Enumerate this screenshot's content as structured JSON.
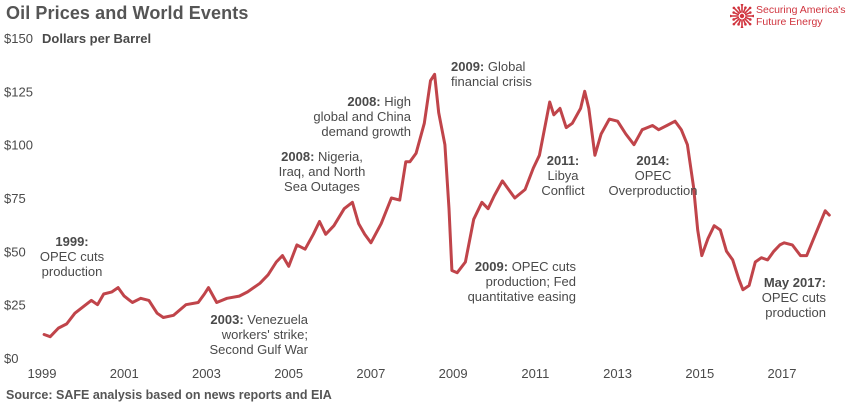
{
  "header": {
    "title": "Oil Prices and World Events",
    "logo_line1": "Securing America's",
    "logo_line2": "Future Energy"
  },
  "footer": {
    "source": "Source: SAFE analysis based on news reports and EIA"
  },
  "colors": {
    "line": "#c0444a",
    "logo": "#d0343e",
    "text": "#4a4a4a"
  },
  "chart_data": {
    "type": "line",
    "title": "Oil Prices and World Events",
    "ylabel": "Dollars per Barrel",
    "xlabel": "",
    "ylim": [
      0,
      150
    ],
    "xlim": [
      1999,
      2018.2
    ],
    "y_ticks": [
      {
        "value": 0,
        "label": "$0"
      },
      {
        "value": 25,
        "label": "$25"
      },
      {
        "value": 50,
        "label": "$50"
      },
      {
        "value": 75,
        "label": "$75"
      },
      {
        "value": 100,
        "label": "$100"
      },
      {
        "value": 125,
        "label": "$125"
      },
      {
        "value": 150,
        "label": "$150"
      }
    ],
    "x_ticks": [
      {
        "value": 1999,
        "label": "1999"
      },
      {
        "value": 2001,
        "label": "2001"
      },
      {
        "value": 2003,
        "label": "2003"
      },
      {
        "value": 2005,
        "label": "2005"
      },
      {
        "value": 2007,
        "label": "2007"
      },
      {
        "value": 2009,
        "label": "2009"
      },
      {
        "value": 2011,
        "label": "2011"
      },
      {
        "value": 2013,
        "label": "2013"
      },
      {
        "value": 2015,
        "label": "2015"
      },
      {
        "value": 2017,
        "label": "2017"
      }
    ],
    "grid": false,
    "legend": "none",
    "series": [
      {
        "name": "",
        "points": [
          [
            1999.05,
            11
          ],
          [
            1999.2,
            10
          ],
          [
            1999.4,
            14
          ],
          [
            1999.6,
            16
          ],
          [
            1999.8,
            21
          ],
          [
            2000.0,
            24
          ],
          [
            2000.2,
            27
          ],
          [
            2000.35,
            25
          ],
          [
            2000.5,
            30
          ],
          [
            2000.7,
            31
          ],
          [
            2000.85,
            33
          ],
          [
            2001.0,
            29
          ],
          [
            2001.2,
            26
          ],
          [
            2001.4,
            28
          ],
          [
            2001.6,
            27
          ],
          [
            2001.8,
            21
          ],
          [
            2001.95,
            19
          ],
          [
            2002.2,
            20
          ],
          [
            2002.5,
            25
          ],
          [
            2002.8,
            26
          ],
          [
            2002.95,
            30
          ],
          [
            2003.05,
            33
          ],
          [
            2003.25,
            26
          ],
          [
            2003.5,
            28
          ],
          [
            2003.8,
            29
          ],
          [
            2004.0,
            31
          ],
          [
            2004.3,
            35
          ],
          [
            2004.5,
            39
          ],
          [
            2004.7,
            45
          ],
          [
            2004.85,
            48
          ],
          [
            2005.0,
            43
          ],
          [
            2005.2,
            53
          ],
          [
            2005.4,
            51
          ],
          [
            2005.6,
            58
          ],
          [
            2005.75,
            64
          ],
          [
            2005.9,
            58
          ],
          [
            2006.1,
            62
          ],
          [
            2006.35,
            70
          ],
          [
            2006.55,
            73
          ],
          [
            2006.7,
            63
          ],
          [
            2006.85,
            58
          ],
          [
            2007.0,
            54
          ],
          [
            2007.25,
            63
          ],
          [
            2007.5,
            75
          ],
          [
            2007.7,
            74
          ],
          [
            2007.85,
            92
          ],
          [
            2007.95,
            92
          ],
          [
            2008.1,
            96
          ],
          [
            2008.3,
            110
          ],
          [
            2008.45,
            130
          ],
          [
            2008.55,
            133
          ],
          [
            2008.65,
            115
          ],
          [
            2008.8,
            100
          ],
          [
            2008.9,
            70
          ],
          [
            2008.97,
            41
          ],
          [
            2009.1,
            40
          ],
          [
            2009.3,
            45
          ],
          [
            2009.5,
            65
          ],
          [
            2009.7,
            73
          ],
          [
            2009.85,
            70
          ],
          [
            2010.0,
            76
          ],
          [
            2010.2,
            83
          ],
          [
            2010.35,
            79
          ],
          [
            2010.5,
            75
          ],
          [
            2010.75,
            79
          ],
          [
            2010.95,
            89
          ],
          [
            2011.1,
            95
          ],
          [
            2011.25,
            110
          ],
          [
            2011.35,
            120
          ],
          [
            2011.45,
            114
          ],
          [
            2011.6,
            117
          ],
          [
            2011.75,
            108
          ],
          [
            2011.9,
            110
          ],
          [
            2012.1,
            117
          ],
          [
            2012.2,
            125
          ],
          [
            2012.3,
            117
          ],
          [
            2012.45,
            95
          ],
          [
            2012.6,
            105
          ],
          [
            2012.8,
            112
          ],
          [
            2013.0,
            111
          ],
          [
            2013.2,
            105
          ],
          [
            2013.4,
            100
          ],
          [
            2013.6,
            107
          ],
          [
            2013.85,
            109
          ],
          [
            2014.0,
            107
          ],
          [
            2014.2,
            109
          ],
          [
            2014.4,
            111
          ],
          [
            2014.55,
            107
          ],
          [
            2014.7,
            100
          ],
          [
            2014.85,
            80
          ],
          [
            2014.95,
            60
          ],
          [
            2015.05,
            48
          ],
          [
            2015.2,
            56
          ],
          [
            2015.35,
            62
          ],
          [
            2015.5,
            60
          ],
          [
            2015.65,
            50
          ],
          [
            2015.8,
            46
          ],
          [
            2015.95,
            37
          ],
          [
            2016.05,
            32
          ],
          [
            2016.2,
            34
          ],
          [
            2016.35,
            45
          ],
          [
            2016.5,
            47
          ],
          [
            2016.65,
            46
          ],
          [
            2016.8,
            50
          ],
          [
            2016.95,
            53
          ],
          [
            2017.05,
            54
          ],
          [
            2017.25,
            53
          ],
          [
            2017.45,
            48
          ],
          [
            2017.6,
            48
          ],
          [
            2017.75,
            55
          ],
          [
            2017.9,
            62
          ],
          [
            2018.05,
            69
          ],
          [
            2018.15,
            67
          ]
        ]
      }
    ],
    "annotations": [
      {
        "bold": "1999:",
        "lines": [
          "OPEC cuts",
          "production"
        ],
        "align": "middle"
      },
      {
        "bold": "2003:",
        "rest": "Venezuela",
        "lines": [
          "workers' strike;",
          "Second Gulf War"
        ],
        "align": "end"
      },
      {
        "bold": "2008:",
        "rest": "Nigeria,",
        "lines": [
          "Iraq, and North",
          "Sea Outages"
        ],
        "align": "middle"
      },
      {
        "bold": "2008:",
        "rest": "High",
        "lines": [
          "global and China",
          "demand growth"
        ],
        "align": "end"
      },
      {
        "bold": "2009:",
        "rest": "Global",
        "lines": [
          "financial crisis"
        ],
        "align": "start"
      },
      {
        "bold": "2009:",
        "rest": "OPEC cuts",
        "lines": [
          "production; Fed",
          "quantitative easing"
        ],
        "align": "end"
      },
      {
        "bold": "2011:",
        "lines": [
          "Libya",
          "Conflict"
        ],
        "align": "middle"
      },
      {
        "bold": "2014:",
        "lines": [
          "OPEC",
          "Overproduction"
        ],
        "align": "middle"
      },
      {
        "bold": "May 2017:",
        "lines": [
          "OPEC cuts",
          "production"
        ],
        "align": "end"
      }
    ]
  }
}
